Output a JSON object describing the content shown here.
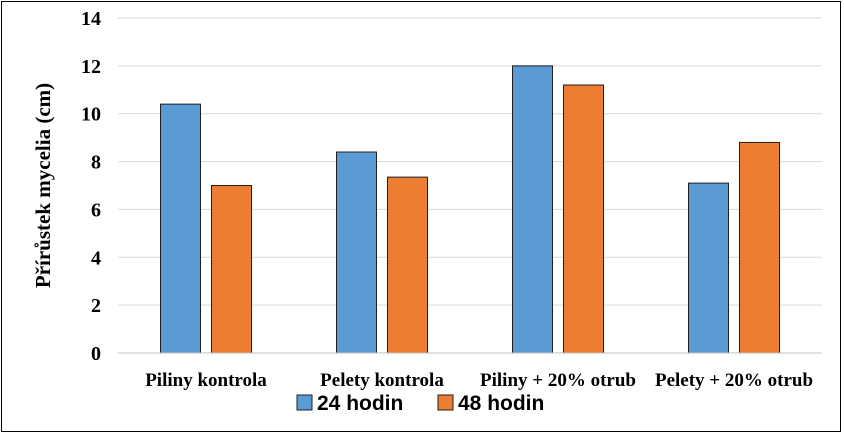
{
  "chart_data": {
    "type": "bar",
    "categories": [
      "Piliny kontrola",
      "Pelety kontrola",
      "Piliny + 20% otrub",
      "Pelety +  20%  otrub"
    ],
    "series": [
      {
        "name": "24 hodin",
        "values": [
          10.4,
          8.4,
          12.0,
          7.1
        ],
        "color": "#5B9BD5"
      },
      {
        "name": "48 hodin",
        "values": [
          7.0,
          7.35,
          11.2,
          8.8
        ],
        "color": "#ED7D31"
      }
    ],
    "ylabel": "Přírůstek mycelia (cm)",
    "xlabel": "",
    "ylim": [
      0,
      14
    ],
    "yticks": [
      0,
      2,
      4,
      6,
      8,
      10,
      12,
      14
    ],
    "grid": true,
    "legend_position": "bottom"
  }
}
